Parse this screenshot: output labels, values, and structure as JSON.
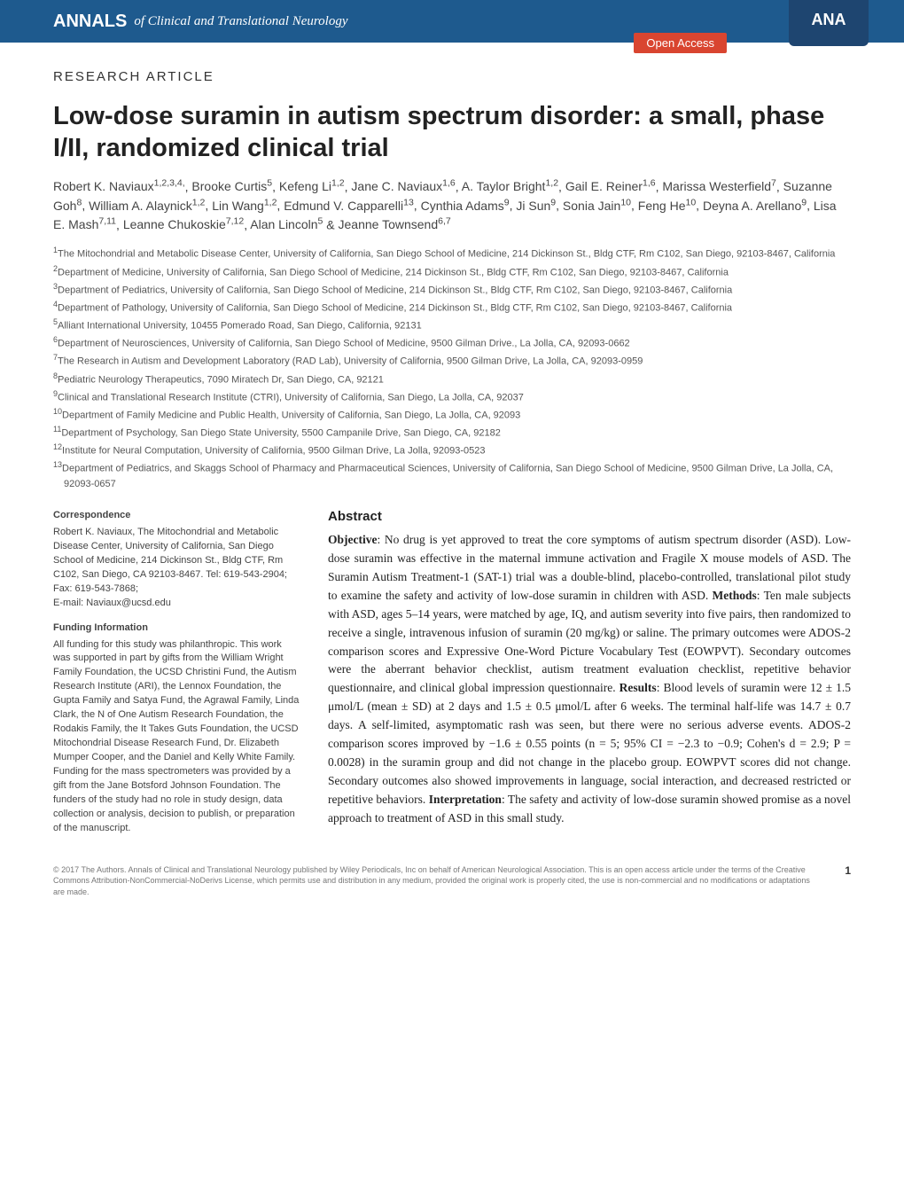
{
  "header": {
    "logo_text": "ANNALS",
    "journal_name": "of Clinical and Translational Neurology",
    "open_access": "Open Access",
    "ana_badge": "ANA",
    "bar_color": "#1e5a8e",
    "open_access_color": "#d94530"
  },
  "article": {
    "type": "RESEARCH ARTICLE",
    "title": "Low-dose suramin in autism spectrum disorder: a small, phase I/II, randomized clinical trial",
    "title_fontsize": 29,
    "authors": [
      {
        "name": "Robert K. Naviaux",
        "aff": "1,2,3,4,"
      },
      {
        "name": "Brooke Curtis",
        "aff": "5"
      },
      {
        "name": "Kefeng Li",
        "aff": "1,2"
      },
      {
        "name": "Jane C. Naviaux",
        "aff": "1,6"
      },
      {
        "name": "A. Taylor Bright",
        "aff": "1,2"
      },
      {
        "name": "Gail E. Reiner",
        "aff": "1,6"
      },
      {
        "name": "Marissa Westerfield",
        "aff": "7"
      },
      {
        "name": "Suzanne Goh",
        "aff": "8"
      },
      {
        "name": "William A. Alaynick",
        "aff": "1,2"
      },
      {
        "name": "Lin Wang",
        "aff": "1,2"
      },
      {
        "name": "Edmund V. Capparelli",
        "aff": "13"
      },
      {
        "name": "Cynthia Adams",
        "aff": "9"
      },
      {
        "name": "Ji Sun",
        "aff": "9"
      },
      {
        "name": "Sonia Jain",
        "aff": "10"
      },
      {
        "name": "Feng He",
        "aff": "10"
      },
      {
        "name": "Deyna A. Arellano",
        "aff": "9"
      },
      {
        "name": "Lisa E. Mash",
        "aff": "7,11"
      },
      {
        "name": "Leanne Chukoskie",
        "aff": "7,12"
      },
      {
        "name": "Alan Lincoln",
        "aff": "5"
      },
      {
        "name": "Jeanne Townsend",
        "aff": "6,7"
      }
    ],
    "affiliations": [
      {
        "num": "1",
        "text": "The Mitochondrial and Metabolic Disease Center, University of California, San Diego School of Medicine, 214 Dickinson St., Bldg CTF, Rm C102, San Diego, 92103-8467, California"
      },
      {
        "num": "2",
        "text": "Department of Medicine, University of California, San Diego School of Medicine, 214 Dickinson St., Bldg CTF, Rm C102, San Diego, 92103-8467, California"
      },
      {
        "num": "3",
        "text": "Department of Pediatrics, University of California, San Diego School of Medicine, 214 Dickinson St., Bldg CTF, Rm C102, San Diego, 92103-8467, California"
      },
      {
        "num": "4",
        "text": "Department of Pathology, University of California, San Diego School of Medicine, 214 Dickinson St., Bldg CTF, Rm C102, San Diego, 92103-8467, California"
      },
      {
        "num": "5",
        "text": "Alliant International University, 10455 Pomerado Road, San Diego, California, 92131"
      },
      {
        "num": "6",
        "text": "Department of Neurosciences, University of California, San Diego School of Medicine, 9500 Gilman Drive., La Jolla, CA, 92093-0662"
      },
      {
        "num": "7",
        "text": "The Research in Autism and Development Laboratory (RAD Lab), University of California, 9500 Gilman Drive, La Jolla, CA, 92093-0959"
      },
      {
        "num": "8",
        "text": "Pediatric Neurology Therapeutics, 7090 Miratech Dr, San Diego, CA, 92121"
      },
      {
        "num": "9",
        "text": "Clinical and Translational Research Institute (CTRI), University of California, San Diego, La Jolla, CA, 92037"
      },
      {
        "num": "10",
        "text": "Department of Family Medicine and Public Health, University of California, San Diego, La Jolla, CA, 92093"
      },
      {
        "num": "11",
        "text": "Department of Psychology, San Diego State University, 5500 Campanile Drive, San Diego, CA, 92182"
      },
      {
        "num": "12",
        "text": "Institute for Neural Computation, University of California, 9500 Gilman Drive, La Jolla, 92093-0523"
      },
      {
        "num": "13",
        "text": "Department of Pediatrics, and Skaggs School of Pharmacy and Pharmaceutical Sciences, University of California, San Diego School of Medicine, 9500 Gilman Drive, La Jolla, CA, 92093-0657"
      }
    ]
  },
  "correspondence": {
    "head": "Correspondence",
    "body": "Robert K. Naviaux, The Mitochondrial and Metabolic Disease Center, University of California, San Diego School of Medicine, 214 Dickinson St., Bldg CTF, Rm C102, San Diego, CA 92103-8467. Tel: 619-543-2904; Fax: 619-543-7868;",
    "email_label": "E-mail: Naviaux@ucsd.edu"
  },
  "funding": {
    "head": "Funding Information",
    "body": "All funding for this study was philanthropic. This work was supported in part by gifts from the William Wright Family Foundation, the UCSD Christini Fund, the Autism Research Institute (ARI), the Lennox Foundation, the Gupta Family and Satya Fund, the Agrawal Family, Linda Clark, the N of One Autism Research Foundation, the Rodakis Family, the It Takes Guts Foundation, the UCSD Mitochondrial Disease Research Fund, Dr. Elizabeth Mumper Cooper, and the Daniel and Kelly White Family. Funding for the mass spectrometers was provided by a gift from the Jane Botsford Johnson Foundation. The funders of the study had no role in study design, data collection or analysis, decision to publish, or preparation of the manuscript."
  },
  "abstract": {
    "head": "Abstract",
    "objective_label": "Objective",
    "objective": ": No drug is yet approved to treat the core symptoms of autism spectrum disorder (ASD). Low-dose suramin was effective in the maternal immune activation and Fragile X mouse models of ASD. The Suramin Autism Treatment-1 (SAT-1) trial was a double-blind, placebo-controlled, translational pilot study to examine the safety and activity of low-dose suramin in children with ASD. ",
    "methods_label": "Methods",
    "methods": ": Ten male subjects with ASD, ages 5–14 years, were matched by age, IQ, and autism severity into five pairs, then randomized to receive a single, intravenous infusion of suramin (20 mg/kg) or saline. The primary outcomes were ADOS-2 comparison scores and Expressive One-Word Picture Vocabulary Test (EOWPVT). Secondary outcomes were the aberrant behavior checklist, autism treatment evaluation checklist, repetitive behavior questionnaire, and clinical global impression questionnaire. ",
    "results_label": "Results",
    "results": ": Blood levels of suramin were 12 ± 1.5 μmol/L (mean ± SD) at 2 days and 1.5 ± 0.5 μmol/L after 6 weeks. The terminal half-life was 14.7 ± 0.7 days. A self-limited, asymptomatic rash was seen, but there were no serious adverse events. ADOS-2 comparison scores improved by −1.6 ± 0.55 points (n = 5; 95% CI = −2.3 to −0.9; Cohen's d = 2.9; P = 0.0028) in the suramin group and did not change in the placebo group. EOWPVT scores did not change. Secondary outcomes also showed improvements in language, social interaction, and decreased restricted or repetitive behaviors. ",
    "interpretation_label": "Interpretation",
    "interpretation": ": The safety and activity of low-dose suramin showed promise as a novel approach to treatment of ASD in this small study."
  },
  "footer": {
    "copyright": "© 2017 The Authors. Annals of Clinical and Translational Neurology published by Wiley Periodicals, Inc on behalf of American Neurological Association. This is an open access article under the terms of the Creative Commons Attribution-NonCommercial-NoDerivs License, which permits use and distribution in any medium, provided the original work is properly cited, the use is non-commercial and no modifications or adaptations are made.",
    "page": "1"
  }
}
